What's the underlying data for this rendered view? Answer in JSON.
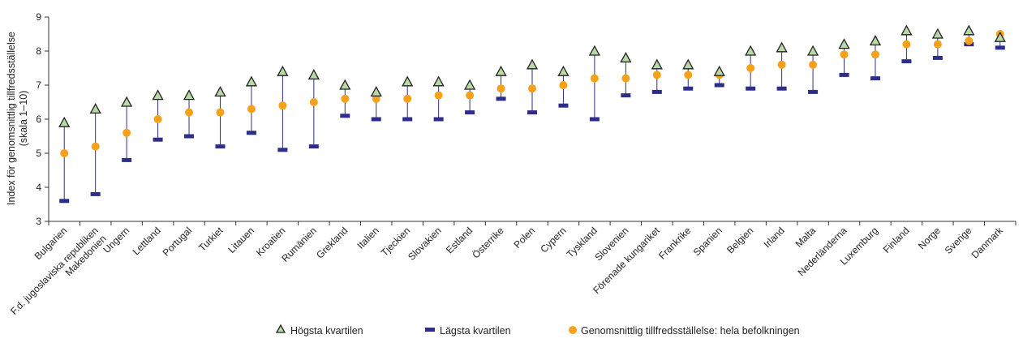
{
  "chart_data": {
    "type": "scatter",
    "ylabel_line1": "Index för genomsnittlig tillfredsställelse",
    "ylabel_line2": "(skala 1–10)",
    "ylim": [
      3,
      9
    ],
    "yticks": [
      3,
      4,
      5,
      6,
      7,
      8,
      9
    ],
    "grid": false,
    "legend_position": "bottom",
    "colors": {
      "high": "#b8d9a6",
      "high_stroke": "#222222",
      "low": "#2e2e8a",
      "avg": "#f7a11a",
      "line": "#2e2e8a",
      "axis": "#333333"
    },
    "categories": [
      "Bulgarien",
      "F.d. jugoslaviska republiken Makedonien",
      "Ungern",
      "Lettland",
      "Portugal",
      "Turkiet",
      "Litauen",
      "Kroatien",
      "Rumänien",
      "Grekland",
      "Italien",
      "Tjeckien",
      "Slovakien",
      "Estland",
      "Österrike",
      "Polen",
      "Cypern",
      "Tyskland",
      "Slovenien",
      "Förenade kungariket",
      "Frankrike",
      "Spanien",
      "Belgien",
      "Irland",
      "Malta",
      "Nederländerna",
      "Luxemburg",
      "Finland",
      "Norge",
      "Sverige",
      "Danmark"
    ],
    "category_label_lines": [
      [
        "Bulgarien"
      ],
      [
        "F.d. jugoslaviska republiken",
        "Makedonien"
      ],
      [
        "Ungern"
      ],
      [
        "Lettland"
      ],
      [
        "Portugal"
      ],
      [
        "Turkiet"
      ],
      [
        "Litauen"
      ],
      [
        "Kroatien"
      ],
      [
        "Rumänien"
      ],
      [
        "Grekland"
      ],
      [
        "Italien"
      ],
      [
        "Tjeckien"
      ],
      [
        "Slovakien"
      ],
      [
        "Estland"
      ],
      [
        "Österrike"
      ],
      [
        "Polen"
      ],
      [
        "Cypern"
      ],
      [
        "Tyskland"
      ],
      [
        "Slovenien"
      ],
      [
        "Förenade kungariket"
      ],
      [
        "Frankrike"
      ],
      [
        "Spanien"
      ],
      [
        "Belgien"
      ],
      [
        "Irland"
      ],
      [
        "Malta"
      ],
      [
        "Nederländerna"
      ],
      [
        "Luxemburg"
      ],
      [
        "Finland"
      ],
      [
        "Norge"
      ],
      [
        "Sverige"
      ],
      [
        "Danmark"
      ]
    ],
    "series": [
      {
        "name": "Högsta kvartilen",
        "key": "high",
        "values": [
          5.9,
          6.3,
          6.5,
          6.7,
          6.7,
          6.8,
          7.1,
          7.4,
          7.3,
          7.0,
          6.8,
          7.1,
          7.1,
          7.0,
          7.4,
          7.6,
          7.4,
          8.0,
          7.8,
          7.6,
          7.6,
          7.4,
          8.0,
          8.1,
          8.0,
          8.2,
          8.3,
          8.6,
          8.5,
          8.6,
          8.4
        ]
      },
      {
        "name": "Lägsta kvartilen",
        "key": "low",
        "values": [
          3.6,
          3.8,
          4.8,
          5.4,
          5.5,
          5.2,
          5.6,
          5.1,
          5.2,
          6.1,
          6.0,
          6.0,
          6.0,
          6.2,
          6.6,
          6.2,
          6.4,
          6.0,
          6.7,
          6.8,
          6.9,
          7.0,
          6.9,
          6.9,
          6.8,
          7.3,
          7.2,
          7.7,
          7.8,
          8.2,
          8.1
        ]
      },
      {
        "name": "Genomsnittlig tillfredsställelse: hela befolkningen",
        "key": "avg",
        "values": [
          5.0,
          5.2,
          5.6,
          6.0,
          6.2,
          6.2,
          6.3,
          6.4,
          6.5,
          6.6,
          6.6,
          6.6,
          6.7,
          6.7,
          6.9,
          6.9,
          7.0,
          7.2,
          7.2,
          7.3,
          7.3,
          7.3,
          7.5,
          7.6,
          7.6,
          7.9,
          7.9,
          8.2,
          8.2,
          8.3,
          8.5
        ]
      }
    ]
  }
}
